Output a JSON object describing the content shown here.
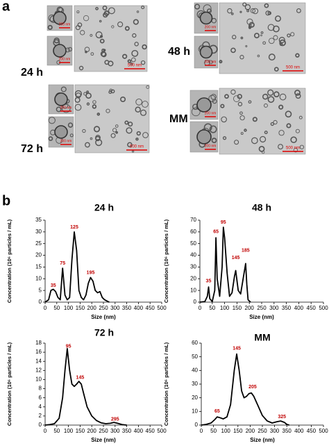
{
  "panel_a": {
    "label": "a",
    "groups": [
      {
        "label": "24 h",
        "scales": [
          "200 nm",
          "200 nm",
          "500 nm"
        ]
      },
      {
        "label": "48 h",
        "scales": [
          "200 nm",
          "200 nm",
          "500 nm"
        ]
      },
      {
        "label": "72 h",
        "scales": [
          "200 nm",
          "200 nm",
          "500 nm"
        ]
      },
      {
        "label": "MM",
        "scales": [
          "200 nm",
          "200 nm",
          "500 nm"
        ]
      }
    ]
  },
  "panel_b": {
    "label": "b"
  },
  "chart_data": [
    {
      "type": "line",
      "title": "24 h",
      "xlabel": "Size (nm)",
      "ylabel": "Concentration (10⁶ particles / mL)",
      "color": "#000000",
      "annotation_color": "#c00000",
      "x": [
        0,
        15,
        25,
        35,
        45,
        55,
        65,
        75,
        85,
        95,
        105,
        115,
        125,
        135,
        145,
        155,
        165,
        175,
        185,
        195,
        205,
        215,
        225,
        235,
        245,
        255,
        265,
        275
      ],
      "values": [
        0,
        1,
        5,
        5.5,
        4.5,
        2,
        1,
        14.5,
        3,
        1,
        2,
        18,
        30,
        22,
        5,
        2,
        1,
        3,
        8,
        10.5,
        9,
        5,
        4,
        4.5,
        2,
        1,
        0.5,
        0
      ],
      "xlim": [
        0,
        500
      ],
      "xticks": [
        0,
        50,
        100,
        150,
        200,
        250,
        300,
        350,
        400,
        450,
        500
      ],
      "ylim": [
        0,
        35
      ],
      "yticks": [
        0,
        5,
        10,
        15,
        20,
        25,
        30,
        35
      ],
      "annotations": [
        {
          "text": "35",
          "x": 35,
          "y": 7
        },
        {
          "text": "75",
          "x": 75,
          "y": 16.5
        },
        {
          "text": "125",
          "x": 125,
          "y": 32
        },
        {
          "text": "195",
          "x": 195,
          "y": 12.5
        }
      ]
    },
    {
      "type": "line",
      "title": "48 h",
      "xlabel": "Size (nm)",
      "ylabel": "Concentration (10⁶ particles / mL)",
      "color": "#000000",
      "annotation_color": "#c00000",
      "x": [
        0,
        20,
        30,
        35,
        40,
        50,
        60,
        65,
        70,
        80,
        90,
        95,
        100,
        110,
        120,
        130,
        140,
        145,
        155,
        165,
        175,
        185,
        190,
        195,
        205
      ],
      "values": [
        0,
        0.5,
        5,
        13,
        3,
        0.5,
        10,
        55,
        20,
        5,
        30,
        64,
        55,
        25,
        5,
        8,
        22,
        27,
        10,
        7,
        20,
        33,
        15,
        2,
        0
      ],
      "xlim": [
        0,
        500
      ],
      "xticks": [
        0,
        50,
        100,
        150,
        200,
        250,
        300,
        350,
        400,
        450,
        500
      ],
      "ylim": [
        0,
        70
      ],
      "yticks": [
        0,
        10,
        20,
        30,
        40,
        50,
        60,
        70
      ],
      "annotations": [
        {
          "text": "35",
          "x": 35,
          "y": 18
        },
        {
          "text": "65",
          "x": 65,
          "y": 60
        },
        {
          "text": "95",
          "x": 95,
          "y": 68
        },
        {
          "text": "145",
          "x": 145,
          "y": 38
        },
        {
          "text": "185",
          "x": 185,
          "y": 44
        }
      ]
    },
    {
      "type": "line",
      "title": "72 h",
      "xlabel": "Size (nm)",
      "ylabel": "Concentration (10⁶ particles / mL)",
      "color": "#000000",
      "annotation_color": "#c00000",
      "x": [
        0,
        20,
        40,
        60,
        75,
        85,
        95,
        105,
        115,
        125,
        135,
        145,
        155,
        165,
        180,
        200,
        220,
        240,
        260,
        280,
        295,
        310,
        330,
        350
      ],
      "values": [
        0,
        0.1,
        0.3,
        1.5,
        6,
        12,
        16.8,
        12,
        9,
        8.5,
        9,
        9.6,
        9,
        7,
        4,
        2,
        1,
        0.5,
        0.3,
        0.4,
        0.6,
        0.4,
        0.1,
        0
      ],
      "xlim": [
        0,
        500
      ],
      "xticks": [
        0,
        50,
        100,
        150,
        200,
        250,
        300,
        350,
        400,
        450,
        500
      ],
      "ylim": [
        0,
        18
      ],
      "yticks": [
        0,
        2,
        4,
        6,
        8,
        10,
        12,
        14,
        16,
        18
      ],
      "annotations": [
        {
          "text": "95",
          "x": 100,
          "y": 17.3
        },
        {
          "text": "145",
          "x": 150,
          "y": 10.4
        },
        {
          "text": "295",
          "x": 300,
          "y": 1.3
        }
      ]
    },
    {
      "type": "line",
      "title": "MM",
      "xlabel": "Size (nm)",
      "ylabel": "Concentration (10⁶ particles / mL)",
      "color": "#000000",
      "annotation_color": "#c00000",
      "x": [
        0,
        20,
        40,
        55,
        65,
        75,
        90,
        105,
        120,
        135,
        145,
        155,
        165,
        175,
        185,
        195,
        205,
        215,
        230,
        250,
        270,
        290,
        310,
        325,
        340,
        350,
        360
      ],
      "values": [
        0,
        0.5,
        1.5,
        4,
        6,
        5.5,
        4.5,
        6,
        15,
        40,
        52,
        40,
        25,
        20,
        21,
        23,
        23.5,
        21,
        15,
        7,
        3,
        1.5,
        2.5,
        3,
        2,
        0.5,
        0
      ],
      "xlim": [
        0,
        500
      ],
      "xticks": [
        0,
        50,
        100,
        150,
        200,
        250,
        300,
        350,
        400,
        450,
        500
      ],
      "ylim": [
        0,
        60
      ],
      "yticks": [
        0,
        10,
        20,
        30,
        40,
        50,
        60
      ],
      "annotations": [
        {
          "text": "65",
          "x": 65,
          "y": 10
        },
        {
          "text": "145",
          "x": 145,
          "y": 56
        },
        {
          "text": "205",
          "x": 210,
          "y": 28
        },
        {
          "text": "325",
          "x": 330,
          "y": 6
        }
      ]
    }
  ]
}
